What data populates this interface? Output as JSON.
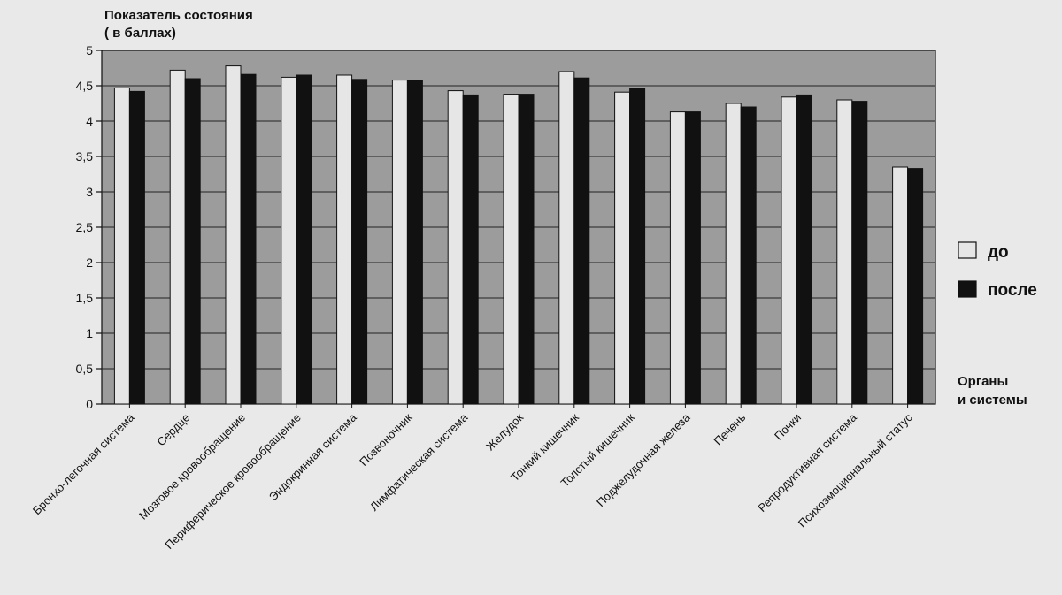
{
  "chart_data": {
    "type": "bar",
    "ylabel_line1": "Показатель состояния",
    "ylabel_line2": "( в баллах)",
    "xlabel_line1": "Органы",
    "xlabel_line2": "и системы",
    "ylim": [
      0,
      5
    ],
    "ytick_labels": [
      "0",
      "0,5",
      "1",
      "1,5",
      "2",
      "2,5",
      "3",
      "3,5",
      "4",
      "4,5",
      "5"
    ],
    "categories": [
      "Бронхо-легочная система",
      "Сердце",
      "Мозговое кровообращение",
      "Периферическое кровообращение",
      "Эндокринная система",
      "Позвоночник",
      "Лимфатическая система",
      "Желудок",
      "Тонкий кишечник",
      "Толстый кишечник",
      "Поджелудочная железа",
      "Печень",
      "Почки",
      "Репродуктивная система",
      "Психоэмоциональный статус"
    ],
    "series": [
      {
        "name": "до",
        "color": "#e6e6e6",
        "values": [
          4.47,
          4.72,
          4.78,
          4.62,
          4.65,
          4.58,
          4.43,
          4.38,
          4.7,
          4.41,
          4.13,
          4.25,
          4.34,
          4.3,
          3.35
        ]
      },
      {
        "name": "после",
        "color": "#111111",
        "values": [
          4.42,
          4.6,
          4.66,
          4.65,
          4.59,
          4.58,
          4.37,
          4.38,
          4.61,
          4.46,
          4.13,
          4.2,
          4.37,
          4.28,
          3.33
        ]
      }
    ],
    "plot_background": "#9c9c9c",
    "grid": true,
    "legend_position": "right"
  }
}
